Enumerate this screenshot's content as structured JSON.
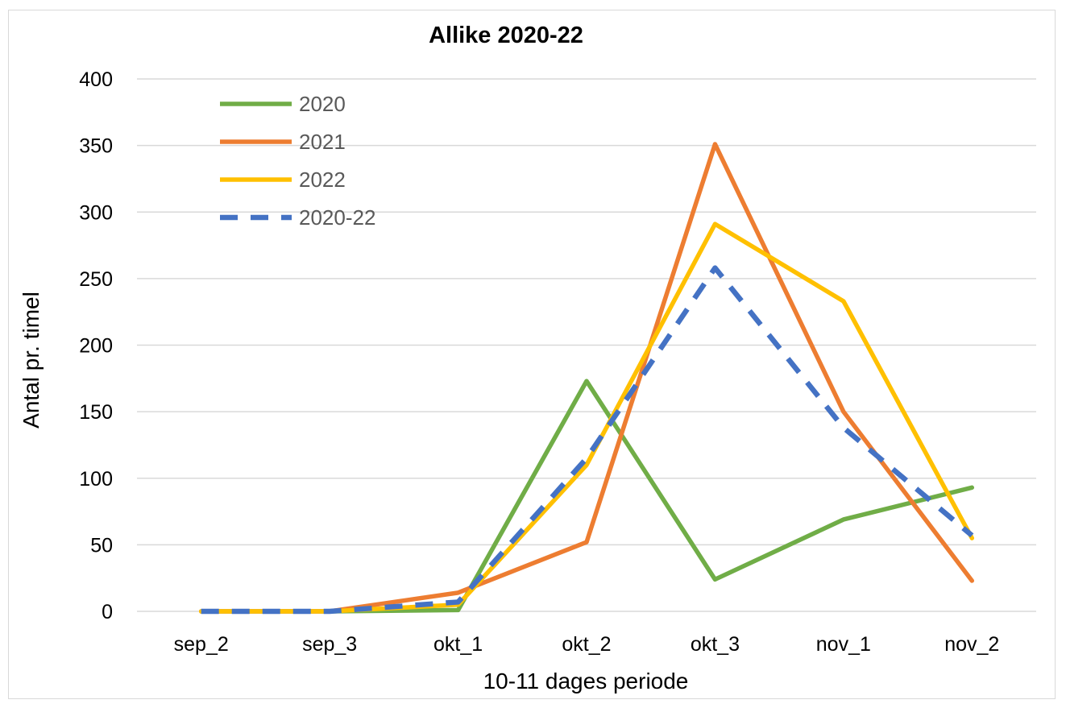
{
  "chart_data": {
    "type": "line",
    "title": "Allike 2020-22",
    "xlabel": "10-11 dages periode",
    "ylabel": "Antal pr. timel",
    "categories": [
      "sep_2",
      "sep_3",
      "okt_1",
      "okt_2",
      "okt_3",
      "nov_1",
      "nov_2"
    ],
    "ylim": [
      0,
      400
    ],
    "yticks": [
      "0",
      "50",
      "100",
      "150",
      "200",
      "250",
      "300",
      "350",
      "400"
    ],
    "grid": true,
    "legend_position": "top-left",
    "series": [
      {
        "name": "2020",
        "color": "#70ad47",
        "dashed": false,
        "values": [
          0,
          0,
          1,
          173,
          24,
          69,
          93
        ]
      },
      {
        "name": "2021",
        "color": "#ed7d31",
        "dashed": false,
        "values": [
          0,
          0,
          14,
          52,
          351,
          150,
          23
        ]
      },
      {
        "name": "2022",
        "color": "#ffc000",
        "dashed": false,
        "values": [
          0,
          0,
          5,
          110,
          291,
          233,
          55
        ]
      },
      {
        "name": "2020-22",
        "color": "#4472c4",
        "dashed": true,
        "values": [
          0,
          0,
          7,
          115,
          258,
          138,
          57
        ]
      }
    ]
  }
}
